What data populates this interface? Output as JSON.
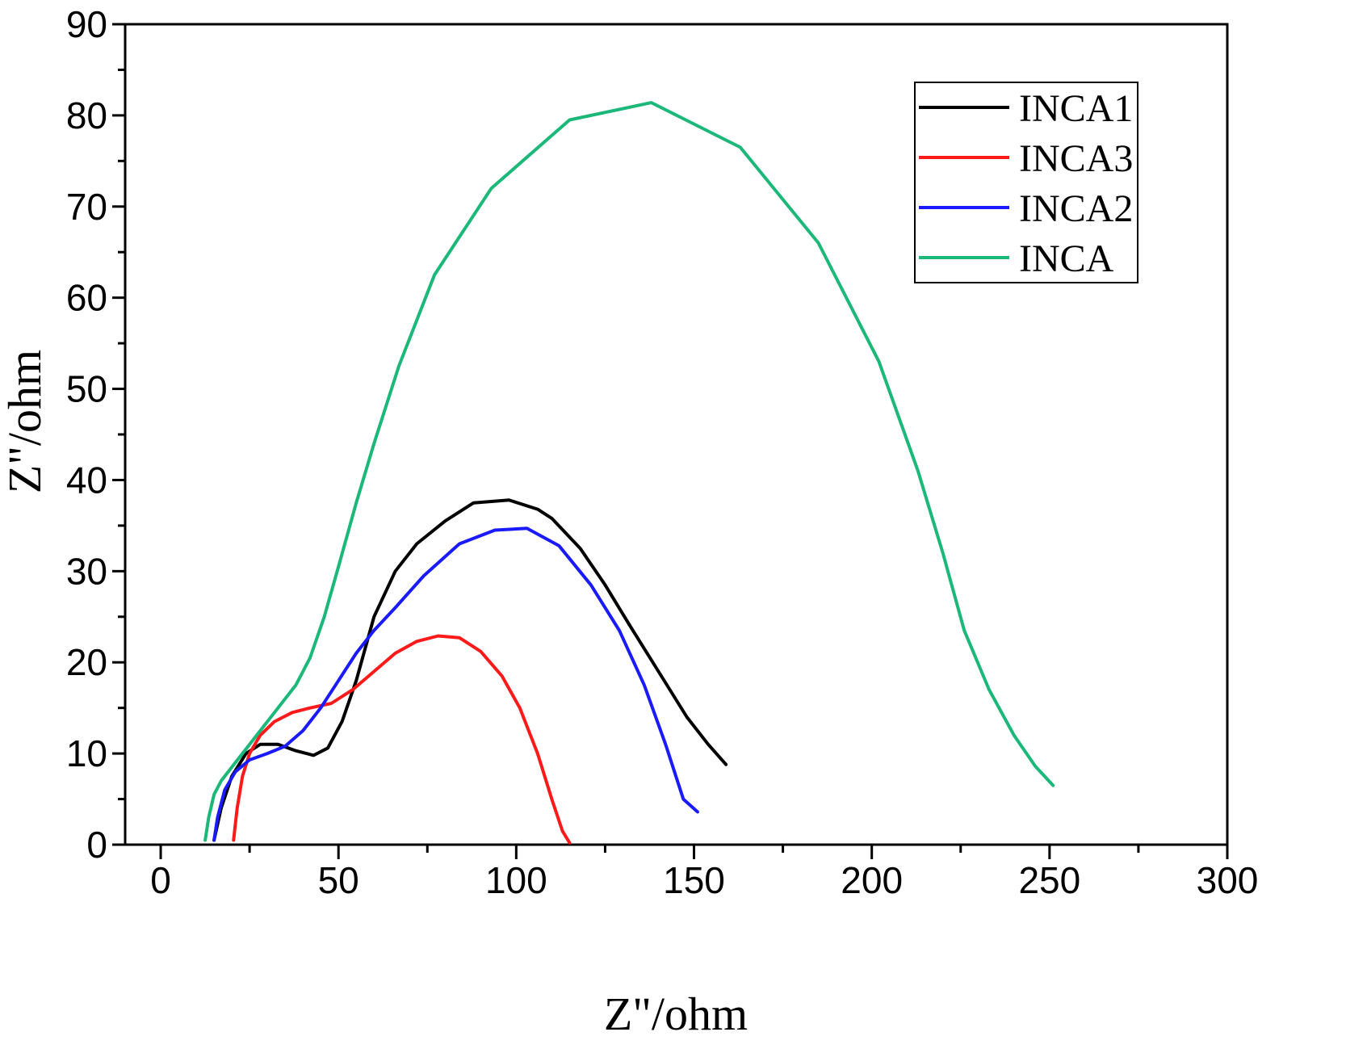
{
  "chart_data": {
    "type": "line",
    "title": "",
    "xlabel": "Z\"/ohm",
    "ylabel": "Z\"/ohm",
    "xlim": [
      -10,
      300
    ],
    "ylim": [
      0,
      90
    ],
    "xticks": [
      0,
      50,
      100,
      150,
      200,
      250,
      300
    ],
    "yticks": [
      0,
      10,
      20,
      30,
      40,
      50,
      60,
      70,
      80,
      90
    ],
    "grid": false,
    "legend_position": "top-right",
    "series": [
      {
        "name": "INCA1",
        "color": "#000000",
        "x": [
          15,
          17,
          20,
          24,
          28,
          33,
          38,
          43,
          47,
          51,
          55,
          60,
          66,
          72,
          80,
          88,
          98,
          106,
          110,
          118,
          125,
          132,
          140,
          148,
          154,
          159
        ],
        "y": [
          0.5,
          4,
          7.5,
          10,
          11,
          11,
          10.3,
          9.8,
          10.6,
          13.5,
          18,
          25,
          30,
          33,
          35.5,
          37.5,
          37.8,
          36.8,
          35.8,
          32.5,
          28.5,
          24,
          19,
          14,
          11,
          8.8
        ]
      },
      {
        "name": "INCA3",
        "color": "#ff1a1a",
        "x": [
          20.5,
          21.5,
          23,
          25,
          28,
          32,
          37,
          42,
          48,
          54,
          60,
          66,
          72,
          78,
          84,
          90,
          96,
          101,
          106,
          110,
          113,
          115
        ],
        "y": [
          0.5,
          4,
          7.5,
          10,
          12,
          13.5,
          14.5,
          15,
          15.5,
          17,
          19,
          21,
          22.3,
          22.9,
          22.7,
          21.2,
          18.5,
          15,
          10,
          5,
          1.5,
          0.2
        ]
      },
      {
        "name": "INCA2",
        "color": "#1a1aff",
        "x": [
          15,
          16,
          18,
          21,
          25,
          30,
          35,
          40,
          45,
          50,
          55,
          60,
          66,
          74,
          84,
          94,
          103,
          112,
          121,
          129,
          136,
          142,
          147,
          151
        ],
        "y": [
          0.5,
          3,
          6,
          8,
          9.3,
          10,
          10.8,
          12.5,
          15,
          18,
          21,
          23.5,
          26,
          29.5,
          33,
          34.5,
          34.7,
          32.8,
          28.5,
          23.5,
          17.5,
          11,
          5,
          3.6
        ]
      },
      {
        "name": "INCA",
        "color": "#1cb87a",
        "x": [
          12.5,
          13.5,
          15,
          17,
          20,
          24,
          28,
          33,
          38,
          42,
          46,
          50,
          55,
          60,
          67,
          77,
          93,
          115,
          138,
          163,
          185,
          202,
          213,
          220,
          226,
          233,
          240,
          246,
          251
        ],
        "y": [
          0.5,
          3,
          5.5,
          7,
          8.5,
          10.5,
          12.5,
          15,
          17.5,
          20.5,
          25,
          30.5,
          37.5,
          44,
          52.5,
          62.5,
          72,
          79.5,
          81.4,
          76.5,
          66,
          53,
          41,
          32,
          23.5,
          17,
          12,
          8.6,
          6.5
        ]
      }
    ]
  }
}
